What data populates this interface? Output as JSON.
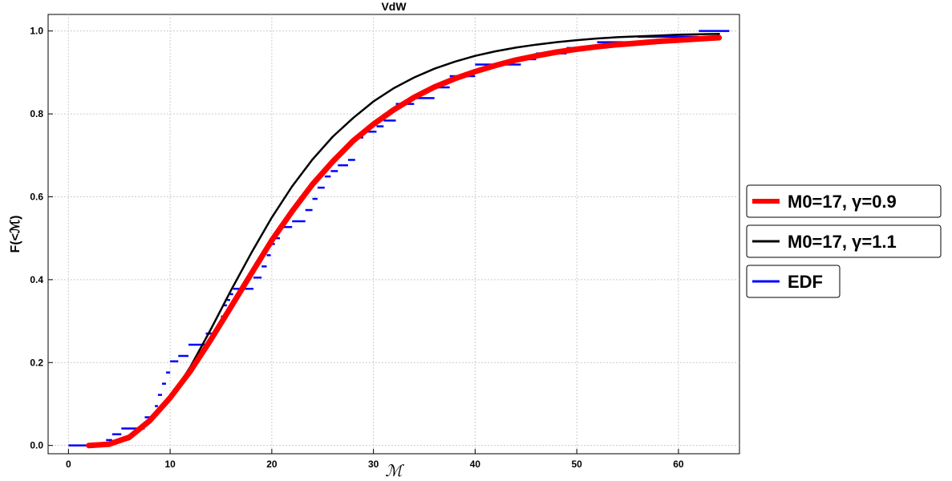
{
  "chart_data": {
    "type": "line",
    "title": "VdW",
    "xlabel": "ℳ",
    "ylabel": "F(<ℳ)",
    "xlim": [
      -2,
      66
    ],
    "ylim": [
      -0.02,
      1.04
    ],
    "xticks": [
      0,
      10,
      20,
      30,
      40,
      50,
      60
    ],
    "yticks": [
      0.0,
      0.2,
      0.4,
      0.6,
      0.8,
      1.0
    ],
    "xtick_labels": [
      "0",
      "10",
      "20",
      "30",
      "40",
      "50",
      "60"
    ],
    "ytick_labels": [
      "0.0",
      "0.2",
      "0.4",
      "0.6",
      "0.8",
      "1.0"
    ],
    "grid": true,
    "legend_position": "right",
    "series": [
      {
        "name": "M0=17, γ=0.9",
        "color": "#ff0000",
        "style": "thick",
        "x": [
          2,
          4,
          6,
          8,
          10,
          12,
          14,
          16,
          18,
          20,
          22,
          24,
          26,
          28,
          30,
          32,
          34,
          36,
          38,
          40,
          42,
          44,
          46,
          48,
          50,
          52,
          54,
          56,
          58,
          60,
          62,
          64
        ],
        "y": [
          0.0,
          0.003,
          0.02,
          0.06,
          0.115,
          0.18,
          0.255,
          0.335,
          0.415,
          0.495,
          0.565,
          0.63,
          0.685,
          0.735,
          0.775,
          0.81,
          0.84,
          0.865,
          0.885,
          0.902,
          0.917,
          0.93,
          0.94,
          0.949,
          0.956,
          0.962,
          0.967,
          0.971,
          0.975,
          0.978,
          0.981,
          0.984
        ]
      },
      {
        "name": "M0=17, γ=1.1",
        "color": "#000000",
        "style": "thin",
        "x": [
          2,
          4,
          6,
          8,
          10,
          12,
          14,
          16,
          18,
          20,
          22,
          24,
          26,
          28,
          30,
          32,
          34,
          36,
          38,
          40,
          42,
          44,
          46,
          48,
          50,
          52,
          54,
          56,
          58,
          60,
          62,
          64
        ],
        "y": [
          0.0,
          0.002,
          0.015,
          0.055,
          0.115,
          0.19,
          0.28,
          0.375,
          0.465,
          0.55,
          0.625,
          0.69,
          0.745,
          0.79,
          0.83,
          0.862,
          0.888,
          0.909,
          0.926,
          0.94,
          0.951,
          0.96,
          0.967,
          0.973,
          0.978,
          0.982,
          0.985,
          0.987,
          0.989,
          0.991,
          0.992,
          0.993
        ]
      },
      {
        "name": "EDF",
        "color": "#0000ff",
        "style": "steps",
        "x_start": [
          0,
          3.7,
          4.3,
          5.2,
          7.5,
          8.5,
          8.8,
          9.2,
          9.6,
          10.0,
          10.8,
          11.8,
          13.5,
          14.5,
          15.0,
          15.3,
          15.6,
          15.9,
          16.2,
          18.2,
          19.0,
          19.5,
          19.9,
          20.3,
          20.8,
          22.0,
          23.3,
          24.0,
          24.5,
          25.2,
          25.8,
          26.5,
          27.5,
          28.2,
          29.0,
          30.3,
          31.0,
          32.2,
          34.0,
          36.0,
          37.5,
          40.0,
          44.5,
          46.0,
          49.0,
          52.0,
          56.0,
          62.0
        ],
        "x_end": [
          3.7,
          4.3,
          5.2,
          7.5,
          8.5,
          8.8,
          9.2,
          9.6,
          10.0,
          10.8,
          11.8,
          13.5,
          14.5,
          15.0,
          15.3,
          15.6,
          15.9,
          16.2,
          18.2,
          19.0,
          19.5,
          19.9,
          20.3,
          20.8,
          22.0,
          23.3,
          24.0,
          24.5,
          25.2,
          25.8,
          26.5,
          27.5,
          28.2,
          29.0,
          30.3,
          31.0,
          32.2,
          34.0,
          36.0,
          37.5,
          40.0,
          44.5,
          46.0,
          49.0,
          52.0,
          56.0,
          62.0,
          65.0
        ],
        "y": [
          0.0,
          0.013,
          0.027,
          0.041,
          0.068,
          0.095,
          0.122,
          0.149,
          0.176,
          0.203,
          0.216,
          0.243,
          0.27,
          0.284,
          0.311,
          0.338,
          0.351,
          0.365,
          0.378,
          0.405,
          0.432,
          0.459,
          0.486,
          0.5,
          0.527,
          0.541,
          0.568,
          0.595,
          0.622,
          0.649,
          0.662,
          0.676,
          0.689,
          0.743,
          0.757,
          0.77,
          0.784,
          0.824,
          0.838,
          0.864,
          0.891,
          0.919,
          0.932,
          0.946,
          0.959,
          0.973,
          0.986,
          1.0
        ]
      }
    ]
  }
}
